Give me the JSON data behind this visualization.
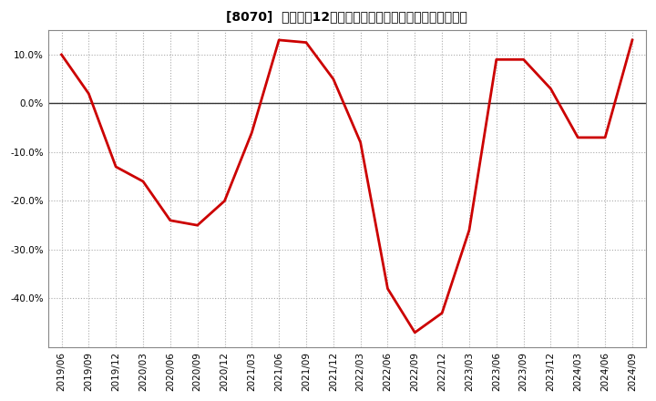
{
  "title": "[8070]  売上高の12か月移動合計の対前年同期増減率の推移",
  "line_color": "#cc0000",
  "background_color": "#ffffff",
  "plot_bg_color": "#ffffff",
  "dates": [
    "2019/06",
    "2019/09",
    "2019/12",
    "2020/03",
    "2020/06",
    "2020/09",
    "2020/12",
    "2021/03",
    "2021/06",
    "2021/09",
    "2021/12",
    "2022/03",
    "2022/06",
    "2022/09",
    "2022/12",
    "2023/03",
    "2023/06",
    "2023/09",
    "2023/12",
    "2024/03",
    "2024/06",
    "2024/09"
  ],
  "values": [
    10.0,
    2.0,
    -13.0,
    -16.0,
    -24.0,
    -25.0,
    -20.0,
    -6.0,
    13.0,
    12.5,
    5.0,
    -8.0,
    -38.0,
    -47.0,
    -43.0,
    -26.0,
    9.0,
    9.0,
    3.0,
    -7.0,
    -7.0,
    13.0
  ],
  "ylim": [
    -50,
    15
  ],
  "yticks": [
    10.0,
    0.0,
    -10.0,
    -20.0,
    -30.0,
    -40.0
  ],
  "title_fontsize": 10,
  "tick_fontsize": 7.5
}
